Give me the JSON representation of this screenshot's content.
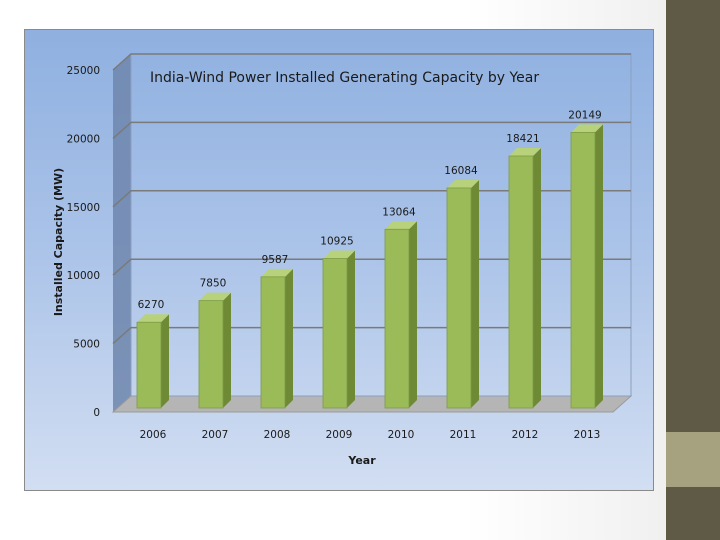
{
  "chart_data": {
    "type": "bar",
    "title": "India-Wind Power Installed Generating Capacity by Year",
    "xlabel": "Year",
    "ylabel": "Installed Capacity (MW)",
    "categories": [
      "2006",
      "2007",
      "2008",
      "2009",
      "2010",
      "2011",
      "2012",
      "2013"
    ],
    "values": [
      6270,
      7850,
      9587,
      10925,
      13064,
      16084,
      18421,
      20149
    ],
    "y_ticks": [
      "0",
      "5000",
      "10000",
      "15000",
      "20000",
      "25000"
    ],
    "ylim": [
      0,
      25000
    ],
    "grid": true,
    "legend": "none",
    "bar_color": "#9bbb59",
    "bar_side_color": "#6f8a35",
    "bar_top_color": "#b7d27a"
  }
}
